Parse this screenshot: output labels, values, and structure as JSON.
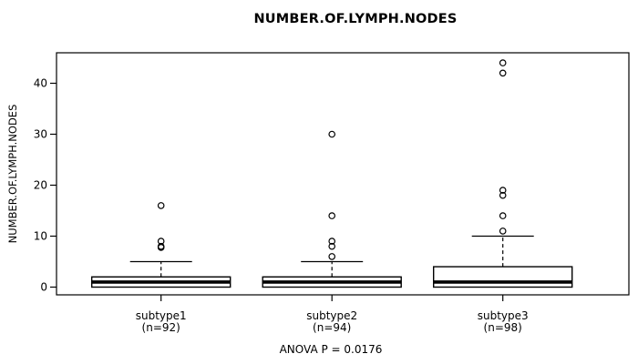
{
  "chart_data": {
    "type": "boxplot",
    "title": "NUMBER.OF.LYMPH.NODES",
    "ylabel": "NUMBER.OF.LYMPH.NODES",
    "xlabel": "",
    "annotation": "ANOVA P = 0.0176",
    "y_ticks": [
      0,
      10,
      20,
      30,
      40
    ],
    "ylim": [
      0,
      44
    ],
    "grid": false,
    "legend": "none",
    "line_color": "#000000",
    "box_fill": "#ffffff",
    "groups": [
      {
        "label": "subtype1",
        "sublabel": "(n=92)",
        "n": 92,
        "whisker_low": 0,
        "q1": 0,
        "median": 1,
        "q3": 2,
        "whisker_high": 5,
        "outliers": [
          8,
          8,
          9,
          16
        ]
      },
      {
        "label": "subtype2",
        "sublabel": "(n=94)",
        "n": 94,
        "whisker_low": 0,
        "q1": 0,
        "median": 1,
        "q3": 2,
        "whisker_high": 5,
        "outliers": [
          6,
          8,
          9,
          14,
          30
        ]
      },
      {
        "label": "subtype3",
        "sublabel": "(n=98)",
        "n": 98,
        "whisker_low": 0,
        "q1": 0,
        "median": 1,
        "q3": 4,
        "whisker_high": 10,
        "outliers": [
          11,
          14,
          18,
          19,
          42,
          44
        ]
      }
    ]
  }
}
